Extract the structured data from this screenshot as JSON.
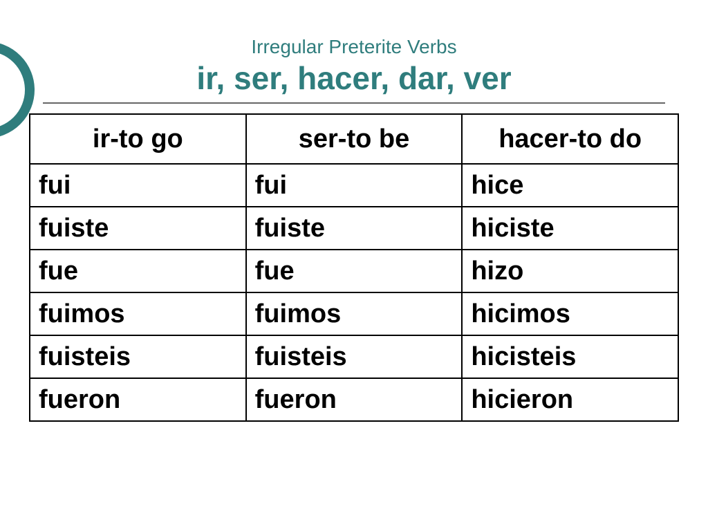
{
  "colors": {
    "accent": "#2f7d7d",
    "title": "#2f7d7d",
    "decoration_border": "#2f7d7d",
    "rule": "#666666",
    "cell_text": "#000000",
    "cell_border": "#000000",
    "background": "#ffffff"
  },
  "typography": {
    "subtitle_fontsize": 28,
    "subtitle_weight": 400,
    "title_fontsize": 46,
    "title_weight": 700,
    "cell_fontsize": 38,
    "cell_weight": 700,
    "font_family": "Arial"
  },
  "header": {
    "subtitle": "Irregular Preterite Verbs",
    "title": "ir, ser, hacer, dar, ver"
  },
  "table": {
    "type": "table",
    "columns": [
      "ir-to go",
      "ser-to be",
      "hacer-to do"
    ],
    "column_widths_pct": [
      33.3,
      33.3,
      33.4
    ],
    "header_align": "center",
    "body_align": "left",
    "rows": [
      [
        "fui",
        "fui",
        "hice"
      ],
      [
        "fuiste",
        "fuiste",
        "hiciste"
      ],
      [
        "fue",
        "fue",
        "hizo"
      ],
      [
        "fuimos",
        "fuimos",
        "hicimos"
      ],
      [
        "fuisteis",
        "fuisteis",
        "hicisteis"
      ],
      [
        "fueron",
        "fueron",
        "hicieron"
      ]
    ]
  }
}
